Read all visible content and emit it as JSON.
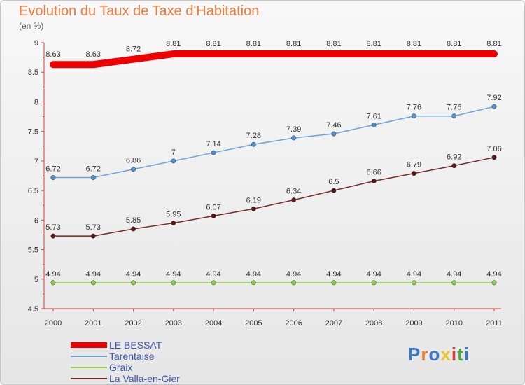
{
  "header": {
    "title": "Evolution du Taux de Taxe d'Habitation",
    "subtitle": "(en %)"
  },
  "logo": {
    "text": "Proxiti",
    "colors": [
      "#3a78c9",
      "#e87e2a",
      "#3a78c9",
      "#e8c52a",
      "#d63a3a",
      "#4aa84a",
      "#3a78c9"
    ]
  },
  "chart_data": {
    "type": "line",
    "x": [
      "2000",
      "2001",
      "2002",
      "2003",
      "2004",
      "2005",
      "2006",
      "2007",
      "2008",
      "2009",
      "2010",
      "2011"
    ],
    "ylim": [
      4.5,
      9
    ],
    "yticks": [
      "4.5",
      "5",
      "5.5",
      "6",
      "6.5",
      "7",
      "7.5",
      "8",
      "8.5",
      "9"
    ],
    "grid": false,
    "legend_position": "bottom-left",
    "series": [
      {
        "name": "LE BESSAT",
        "color": "#ee0000",
        "width": 10,
        "marker": false,
        "values": [
          8.63,
          8.63,
          8.72,
          8.81,
          8.81,
          8.81,
          8.81,
          8.81,
          8.81,
          8.81,
          8.81,
          8.81
        ],
        "labels": [
          "8.63",
          "8.63",
          "8.72",
          "8.81",
          "8.81",
          "8.81",
          "8.81",
          "8.81",
          "8.81",
          "8.81",
          "8.81",
          "8.81"
        ]
      },
      {
        "name": "Tarentaise",
        "color": "#6fa3d6",
        "marker_fill": "#4d8fd0",
        "width": 1.5,
        "marker": true,
        "values": [
          6.72,
          6.72,
          6.86,
          7,
          7.14,
          7.28,
          7.39,
          7.46,
          7.61,
          7.76,
          7.76,
          7.92
        ],
        "labels": [
          "6.72",
          "6.72",
          "6.86",
          "7",
          "7.14",
          "7.28",
          "7.39",
          "7.46",
          "7.61",
          "7.76",
          "7.76",
          "7.92"
        ]
      },
      {
        "name": "Graix",
        "color": "#8fd050",
        "marker_fill": "#8fd050",
        "width": 1.5,
        "marker": true,
        "values": [
          4.94,
          4.94,
          4.94,
          4.94,
          4.94,
          4.94,
          4.94,
          4.94,
          4.94,
          4.94,
          4.94,
          4.94
        ],
        "labels": [
          "4.94",
          "4.94",
          "4.94",
          "4.94",
          "4.94",
          "4.94",
          "4.94",
          "4.94",
          "4.94",
          "4.94",
          "4.94",
          "4.94"
        ]
      },
      {
        "name": "La Valla-en-Gier",
        "color": "#7a2a2a",
        "marker_fill": "#5a1515",
        "width": 1.5,
        "marker": true,
        "values": [
          5.73,
          5.73,
          5.85,
          5.95,
          6.07,
          6.19,
          6.34,
          6.5,
          6.66,
          6.79,
          6.92,
          7.06
        ],
        "labels": [
          "5.73",
          "5.73",
          "5.85",
          "5.95",
          "6.07",
          "6.19",
          "6.34",
          "6.5",
          "6.66",
          "6.79",
          "6.92",
          "7.06"
        ]
      }
    ]
  }
}
